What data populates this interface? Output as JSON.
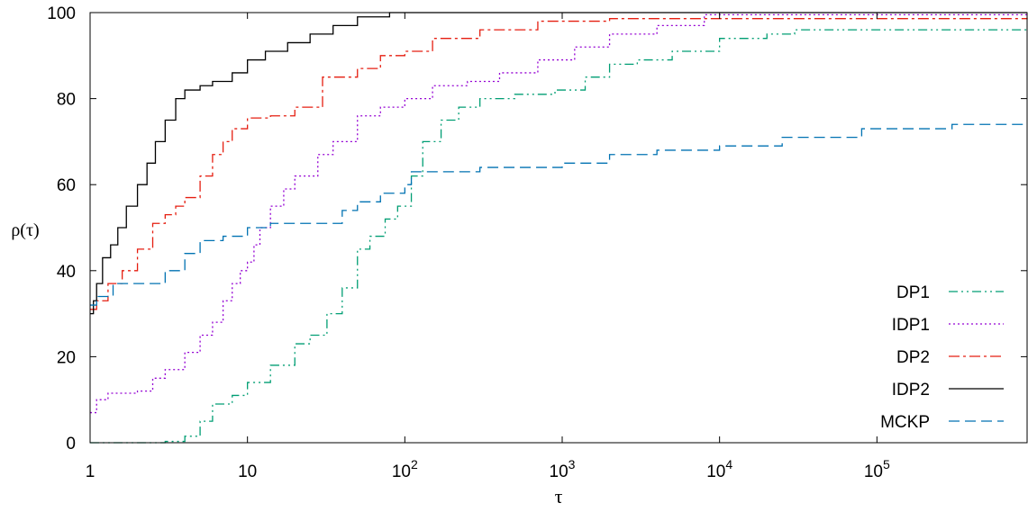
{
  "chart_data": {
    "type": "line",
    "xlabel": "τ",
    "ylabel": "ρ(τ)",
    "xscale": "log",
    "xlim": [
      1,
      900000
    ],
    "ylim": [
      0,
      100
    ],
    "grid": false,
    "legend_position": "bottom-right",
    "x_ticks": [
      {
        "value": 1,
        "label": "1"
      },
      {
        "value": 10,
        "label": "10"
      },
      {
        "value": 100,
        "label": "10",
        "sup": "2"
      },
      {
        "value": 1000,
        "label": "10",
        "sup": "3"
      },
      {
        "value": 10000,
        "label": "10",
        "sup": "4"
      },
      {
        "value": 100000,
        "label": "10",
        "sup": "5"
      }
    ],
    "y_ticks": [
      0,
      20,
      40,
      60,
      80,
      100
    ],
    "series": [
      {
        "name": "DP1",
        "color": "#009e73",
        "dash": "10,4,2,4,2,4",
        "points": [
          [
            1,
            0
          ],
          [
            3,
            0.3
          ],
          [
            4,
            1.5
          ],
          [
            5,
            5
          ],
          [
            6,
            9
          ],
          [
            8,
            11
          ],
          [
            10,
            14
          ],
          [
            14,
            18
          ],
          [
            20,
            23
          ],
          [
            25,
            25
          ],
          [
            32,
            30
          ],
          [
            40,
            36
          ],
          [
            50,
            45
          ],
          [
            60,
            48
          ],
          [
            75,
            52
          ],
          [
            90,
            55
          ],
          [
            110,
            62
          ],
          [
            130,
            70
          ],
          [
            170,
            75
          ],
          [
            220,
            78
          ],
          [
            300,
            80
          ],
          [
            500,
            81
          ],
          [
            900,
            82
          ],
          [
            1400,
            85
          ],
          [
            2000,
            88
          ],
          [
            3000,
            89
          ],
          [
            5000,
            91
          ],
          [
            10000,
            94
          ],
          [
            20000,
            95
          ],
          [
            30000,
            96
          ],
          [
            900000,
            96.5
          ]
        ]
      },
      {
        "name": "IDP1",
        "color": "#9400d3",
        "dash": "2,3",
        "points": [
          [
            1,
            7
          ],
          [
            1.1,
            10
          ],
          [
            1.3,
            11.5
          ],
          [
            2,
            12
          ],
          [
            2.5,
            15
          ],
          [
            3,
            17
          ],
          [
            4,
            21
          ],
          [
            5,
            25
          ],
          [
            6,
            28
          ],
          [
            7,
            33
          ],
          [
            8,
            37
          ],
          [
            9,
            40
          ],
          [
            10,
            42
          ],
          [
            11,
            46
          ],
          [
            12,
            50
          ],
          [
            14,
            55
          ],
          [
            17,
            59
          ],
          [
            20,
            62
          ],
          [
            28,
            67
          ],
          [
            35,
            70
          ],
          [
            50,
            76
          ],
          [
            70,
            78
          ],
          [
            100,
            80
          ],
          [
            150,
            83
          ],
          [
            250,
            84
          ],
          [
            400,
            86
          ],
          [
            700,
            89
          ],
          [
            1200,
            92
          ],
          [
            2000,
            95
          ],
          [
            4000,
            97
          ],
          [
            8000,
            99.5
          ],
          [
            900000,
            100
          ]
        ]
      },
      {
        "name": "DP2",
        "color": "#e51e10",
        "dash": "12,4,3,4",
        "points": [
          [
            1,
            31
          ],
          [
            1.1,
            33
          ],
          [
            1.3,
            37
          ],
          [
            1.6,
            40
          ],
          [
            2,
            45
          ],
          [
            2.5,
            51
          ],
          [
            3,
            53
          ],
          [
            3.5,
            55
          ],
          [
            4,
            57
          ],
          [
            5,
            62
          ],
          [
            6,
            67
          ],
          [
            7,
            70
          ],
          [
            8,
            73
          ],
          [
            10,
            75.5
          ],
          [
            14,
            76
          ],
          [
            20,
            78
          ],
          [
            30,
            85
          ],
          [
            50,
            87
          ],
          [
            70,
            90
          ],
          [
            100,
            91
          ],
          [
            150,
            94
          ],
          [
            300,
            96
          ],
          [
            700,
            98
          ],
          [
            2000,
            98.6
          ],
          [
            900000,
            98.8
          ]
        ]
      },
      {
        "name": "IDP2",
        "color": "#000000",
        "dash": "",
        "points": [
          [
            1,
            30
          ],
          [
            1.05,
            33
          ],
          [
            1.1,
            37
          ],
          [
            1.2,
            43
          ],
          [
            1.35,
            46
          ],
          [
            1.5,
            50
          ],
          [
            1.7,
            55
          ],
          [
            2,
            60
          ],
          [
            2.3,
            65
          ],
          [
            2.6,
            70
          ],
          [
            3,
            75
          ],
          [
            3.5,
            80
          ],
          [
            4,
            82
          ],
          [
            5,
            83
          ],
          [
            6,
            84
          ],
          [
            8,
            86
          ],
          [
            10,
            89
          ],
          [
            13,
            91
          ],
          [
            18,
            93
          ],
          [
            25,
            95
          ],
          [
            35,
            97
          ],
          [
            50,
            99
          ],
          [
            80,
            100
          ],
          [
            900000,
            100
          ]
        ]
      },
      {
        "name": "MCKP",
        "color": "#0072b2",
        "dash": "12,6",
        "points": [
          [
            1,
            32
          ],
          [
            1.1,
            34
          ],
          [
            1.4,
            37
          ],
          [
            2.5,
            37
          ],
          [
            3,
            40
          ],
          [
            4,
            44
          ],
          [
            5,
            47
          ],
          [
            7,
            48
          ],
          [
            10,
            50
          ],
          [
            14,
            51
          ],
          [
            30,
            51
          ],
          [
            40,
            54
          ],
          [
            50,
            56
          ],
          [
            70,
            58
          ],
          [
            100,
            60
          ],
          [
            110,
            63
          ],
          [
            300,
            64
          ],
          [
            1000,
            65
          ],
          [
            2000,
            67
          ],
          [
            4000,
            68
          ],
          [
            10000,
            69
          ],
          [
            25000,
            71
          ],
          [
            80000,
            73
          ],
          [
            300000,
            74
          ],
          [
            900000,
            74
          ]
        ]
      }
    ]
  }
}
